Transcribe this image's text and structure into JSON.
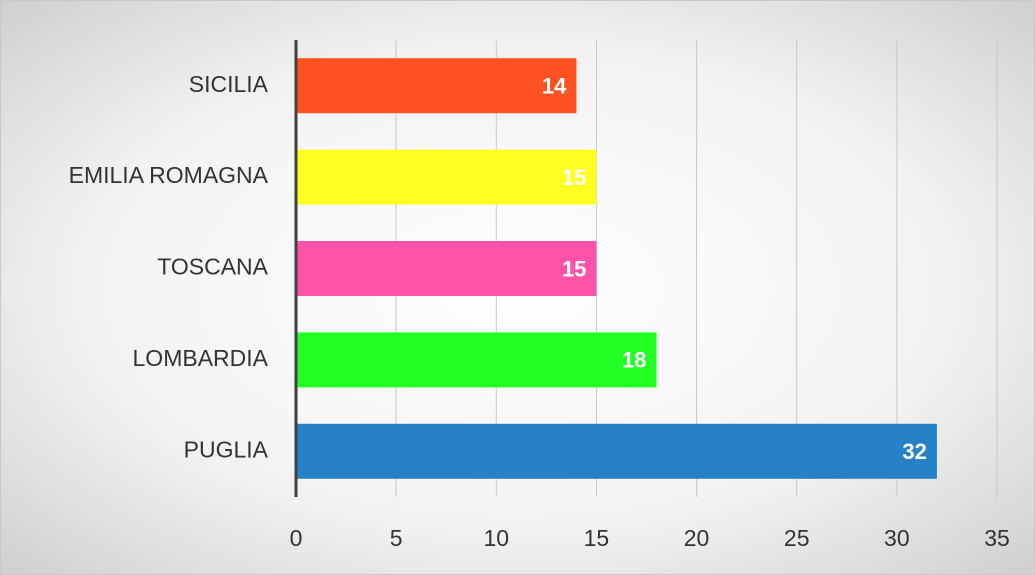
{
  "chart_data": {
    "type": "bar",
    "orientation": "horizontal",
    "categories": [
      "SICILIA",
      "EMILIA ROMAGNA",
      "TOSCANA",
      "LOMBARDIA",
      "PUGLIA"
    ],
    "values": [
      14,
      15,
      15,
      18,
      32
    ],
    "colors": [
      "#ff5121",
      "#ffff22",
      "#ff52a9",
      "#22ff22",
      "#2681c9"
    ],
    "xlim": [
      0,
      35
    ],
    "xticks": [
      0,
      5,
      10,
      15,
      20,
      25,
      30,
      35
    ],
    "grid": true
  }
}
